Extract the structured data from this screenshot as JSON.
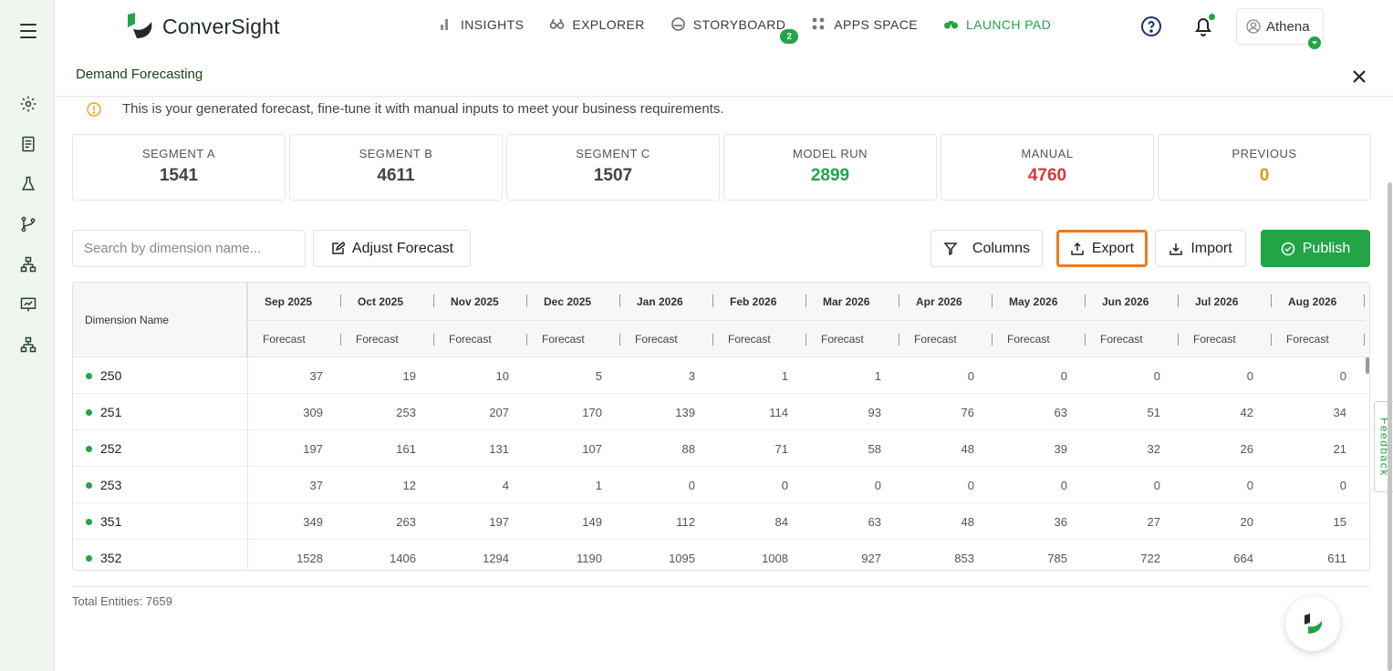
{
  "app": {
    "name": "ConverSight",
    "user": "Athena"
  },
  "nav": [
    {
      "label": "INSIGHTS",
      "icon": "bar-chart-icon"
    },
    {
      "label": "EXPLORER",
      "icon": "binoculars-icon"
    },
    {
      "label": "STORYBOARD",
      "icon": "storyboard-icon",
      "badge": "2"
    },
    {
      "label": "APPS SPACE",
      "icon": "grid-icon"
    },
    {
      "label": "LAUNCH PAD",
      "icon": "launchpad-icon",
      "active": true
    }
  ],
  "panel": {
    "title": "Demand Forecasting",
    "notice": "This is your generated forecast, fine-tune it with manual inputs to meet your business requirements."
  },
  "stats": [
    {
      "label": "SEGMENT A",
      "value": "1541",
      "color": "#444444"
    },
    {
      "label": "SEGMENT B",
      "value": "4611",
      "color": "#444444"
    },
    {
      "label": "SEGMENT C",
      "value": "1507",
      "color": "#444444"
    },
    {
      "label": "MODEL RUN",
      "value": "2899",
      "color": "#22a447"
    },
    {
      "label": "MANUAL",
      "value": "4760",
      "color": "#d43a3a"
    },
    {
      "label": "PREVIOUS",
      "value": "0",
      "color": "#d39a1c"
    }
  ],
  "toolbar": {
    "search_placeholder": "Search by dimension name...",
    "adjust_label": "Adjust Forecast",
    "columns_label": "Columns",
    "export_label": "Export",
    "import_label": "Import",
    "publish_label": "Publish"
  },
  "table": {
    "dimension_header": "Dimension Name",
    "months": [
      "Sep 2025",
      "Oct 2025",
      "Nov 2025",
      "Dec 2025",
      "Jan 2026",
      "Feb 2026",
      "Mar 2026",
      "Apr 2026",
      "May 2026",
      "Jun 2026",
      "Jul 2026",
      "Aug 2026"
    ],
    "sub_header": "Forecast",
    "rows": [
      {
        "dimension": "250",
        "values": [
          "37",
          "19",
          "10",
          "5",
          "3",
          "1",
          "1",
          "0",
          "0",
          "0",
          "0",
          "0"
        ]
      },
      {
        "dimension": "251",
        "values": [
          "309",
          "253",
          "207",
          "170",
          "139",
          "114",
          "93",
          "76",
          "63",
          "51",
          "42",
          "34"
        ]
      },
      {
        "dimension": "252",
        "values": [
          "197",
          "161",
          "131",
          "107",
          "88",
          "71",
          "58",
          "48",
          "39",
          "32",
          "26",
          "21"
        ]
      },
      {
        "dimension": "253",
        "values": [
          "37",
          "12",
          "4",
          "1",
          "0",
          "0",
          "0",
          "0",
          "0",
          "0",
          "0",
          "0"
        ]
      },
      {
        "dimension": "351",
        "values": [
          "349",
          "263",
          "197",
          "149",
          "112",
          "84",
          "63",
          "48",
          "36",
          "27",
          "20",
          "15"
        ]
      },
      {
        "dimension": "352",
        "values": [
          "1528",
          "1406",
          "1294",
          "1190",
          "1095",
          "1008",
          "927",
          "853",
          "785",
          "722",
          "664",
          "611"
        ]
      }
    ]
  },
  "footer": {
    "total": "Total Entities: 7659"
  },
  "feedback_label": "Feedback"
}
